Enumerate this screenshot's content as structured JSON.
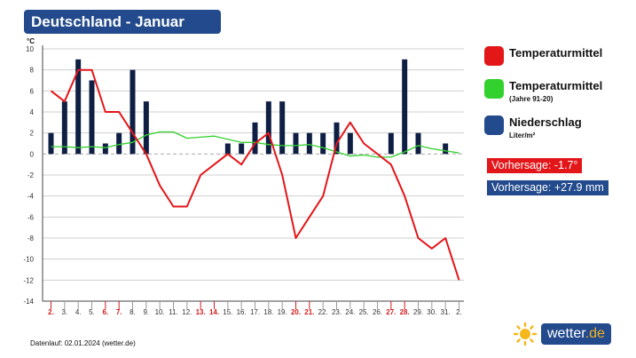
{
  "title": "Deutschland - Januar",
  "chart_data": {
    "type": "bar+line",
    "y_unit": "°C",
    "ylim": [
      -14,
      10
    ],
    "y_ticks": [
      10,
      8,
      6,
      4,
      2,
      0,
      -2,
      -4,
      -6,
      -8,
      -10,
      -12,
      -14
    ],
    "categories": [
      "2.",
      "3.",
      "4.",
      "5.",
      "6.",
      "7.",
      "8.",
      "9.",
      "10.",
      "11.",
      "12.",
      "13.",
      "14.",
      "15.",
      "16.",
      "17.",
      "18.",
      "19.",
      "20.",
      "21.",
      "22.",
      "23.",
      "24.",
      "25.",
      "26.",
      "27.",
      "28.",
      "29.",
      "30.",
      "31.",
      "2."
    ],
    "weekend_categories": [
      "2.",
      "6.",
      "7.",
      "13.",
      "14.",
      "20.",
      "21.",
      "27.",
      "28."
    ],
    "weekend_color": "#d21c1c",
    "series": [
      {
        "name": "Temperaturmittel",
        "type": "line",
        "color": "#e3161a",
        "values": [
          6,
          5,
          8,
          8,
          4,
          4,
          2,
          0,
          -3,
          -5,
          -5,
          -2,
          -1,
          0,
          -1,
          1,
          2,
          -2,
          -8,
          -6,
          -4,
          1,
          3,
          1,
          0,
          -1,
          -4,
          -8,
          -9,
          -8,
          -12
        ]
      },
      {
        "name": "Temperaturmittel",
        "type": "line",
        "color": "#33d12e",
        "values": [
          0.7,
          0.7,
          0.6,
          0.7,
          0.6,
          0.9,
          1.1,
          1.8,
          2.1,
          2.1,
          1.5,
          1.6,
          1.7,
          1.4,
          1.1,
          1.1,
          0.9,
          0.8,
          0.8,
          0.9,
          0.6,
          0.2,
          -0.2,
          -0.1,
          -0.3,
          -0.3,
          0.2,
          0.8,
          0.5,
          0.3,
          0.1
        ]
      },
      {
        "name": "Niederschlag",
        "type": "bar",
        "color": "#0f1f44",
        "values": [
          2,
          5,
          9,
          7,
          1,
          2,
          8,
          5,
          0,
          0,
          0,
          0,
          0,
          1,
          1,
          3,
          5,
          5,
          2,
          2,
          2,
          3,
          2,
          0,
          0,
          2,
          9,
          2,
          0,
          1,
          0
        ]
      }
    ]
  },
  "legend": [
    {
      "label": "Temperaturmittel",
      "sub": "",
      "color": "#e3161a"
    },
    {
      "label": "Temperaturmittel",
      "sub": "(Jahre 91-20)",
      "color": "#33d12e"
    },
    {
      "label": "Niederschlag",
      "sub": "Liter/m²",
      "color": "#234a8c"
    }
  ],
  "forecast_temp": {
    "text": "Vorhersage: -1.7°",
    "color": "#e3161a"
  },
  "forecast_precip": {
    "text": "Vorhersage: +27.9 mm",
    "color": "#234a8c"
  },
  "footer": "Datenlauf: 02.01.2024 (wetter.de)",
  "logo": {
    "name": "wetter",
    "suffix": ".de"
  }
}
